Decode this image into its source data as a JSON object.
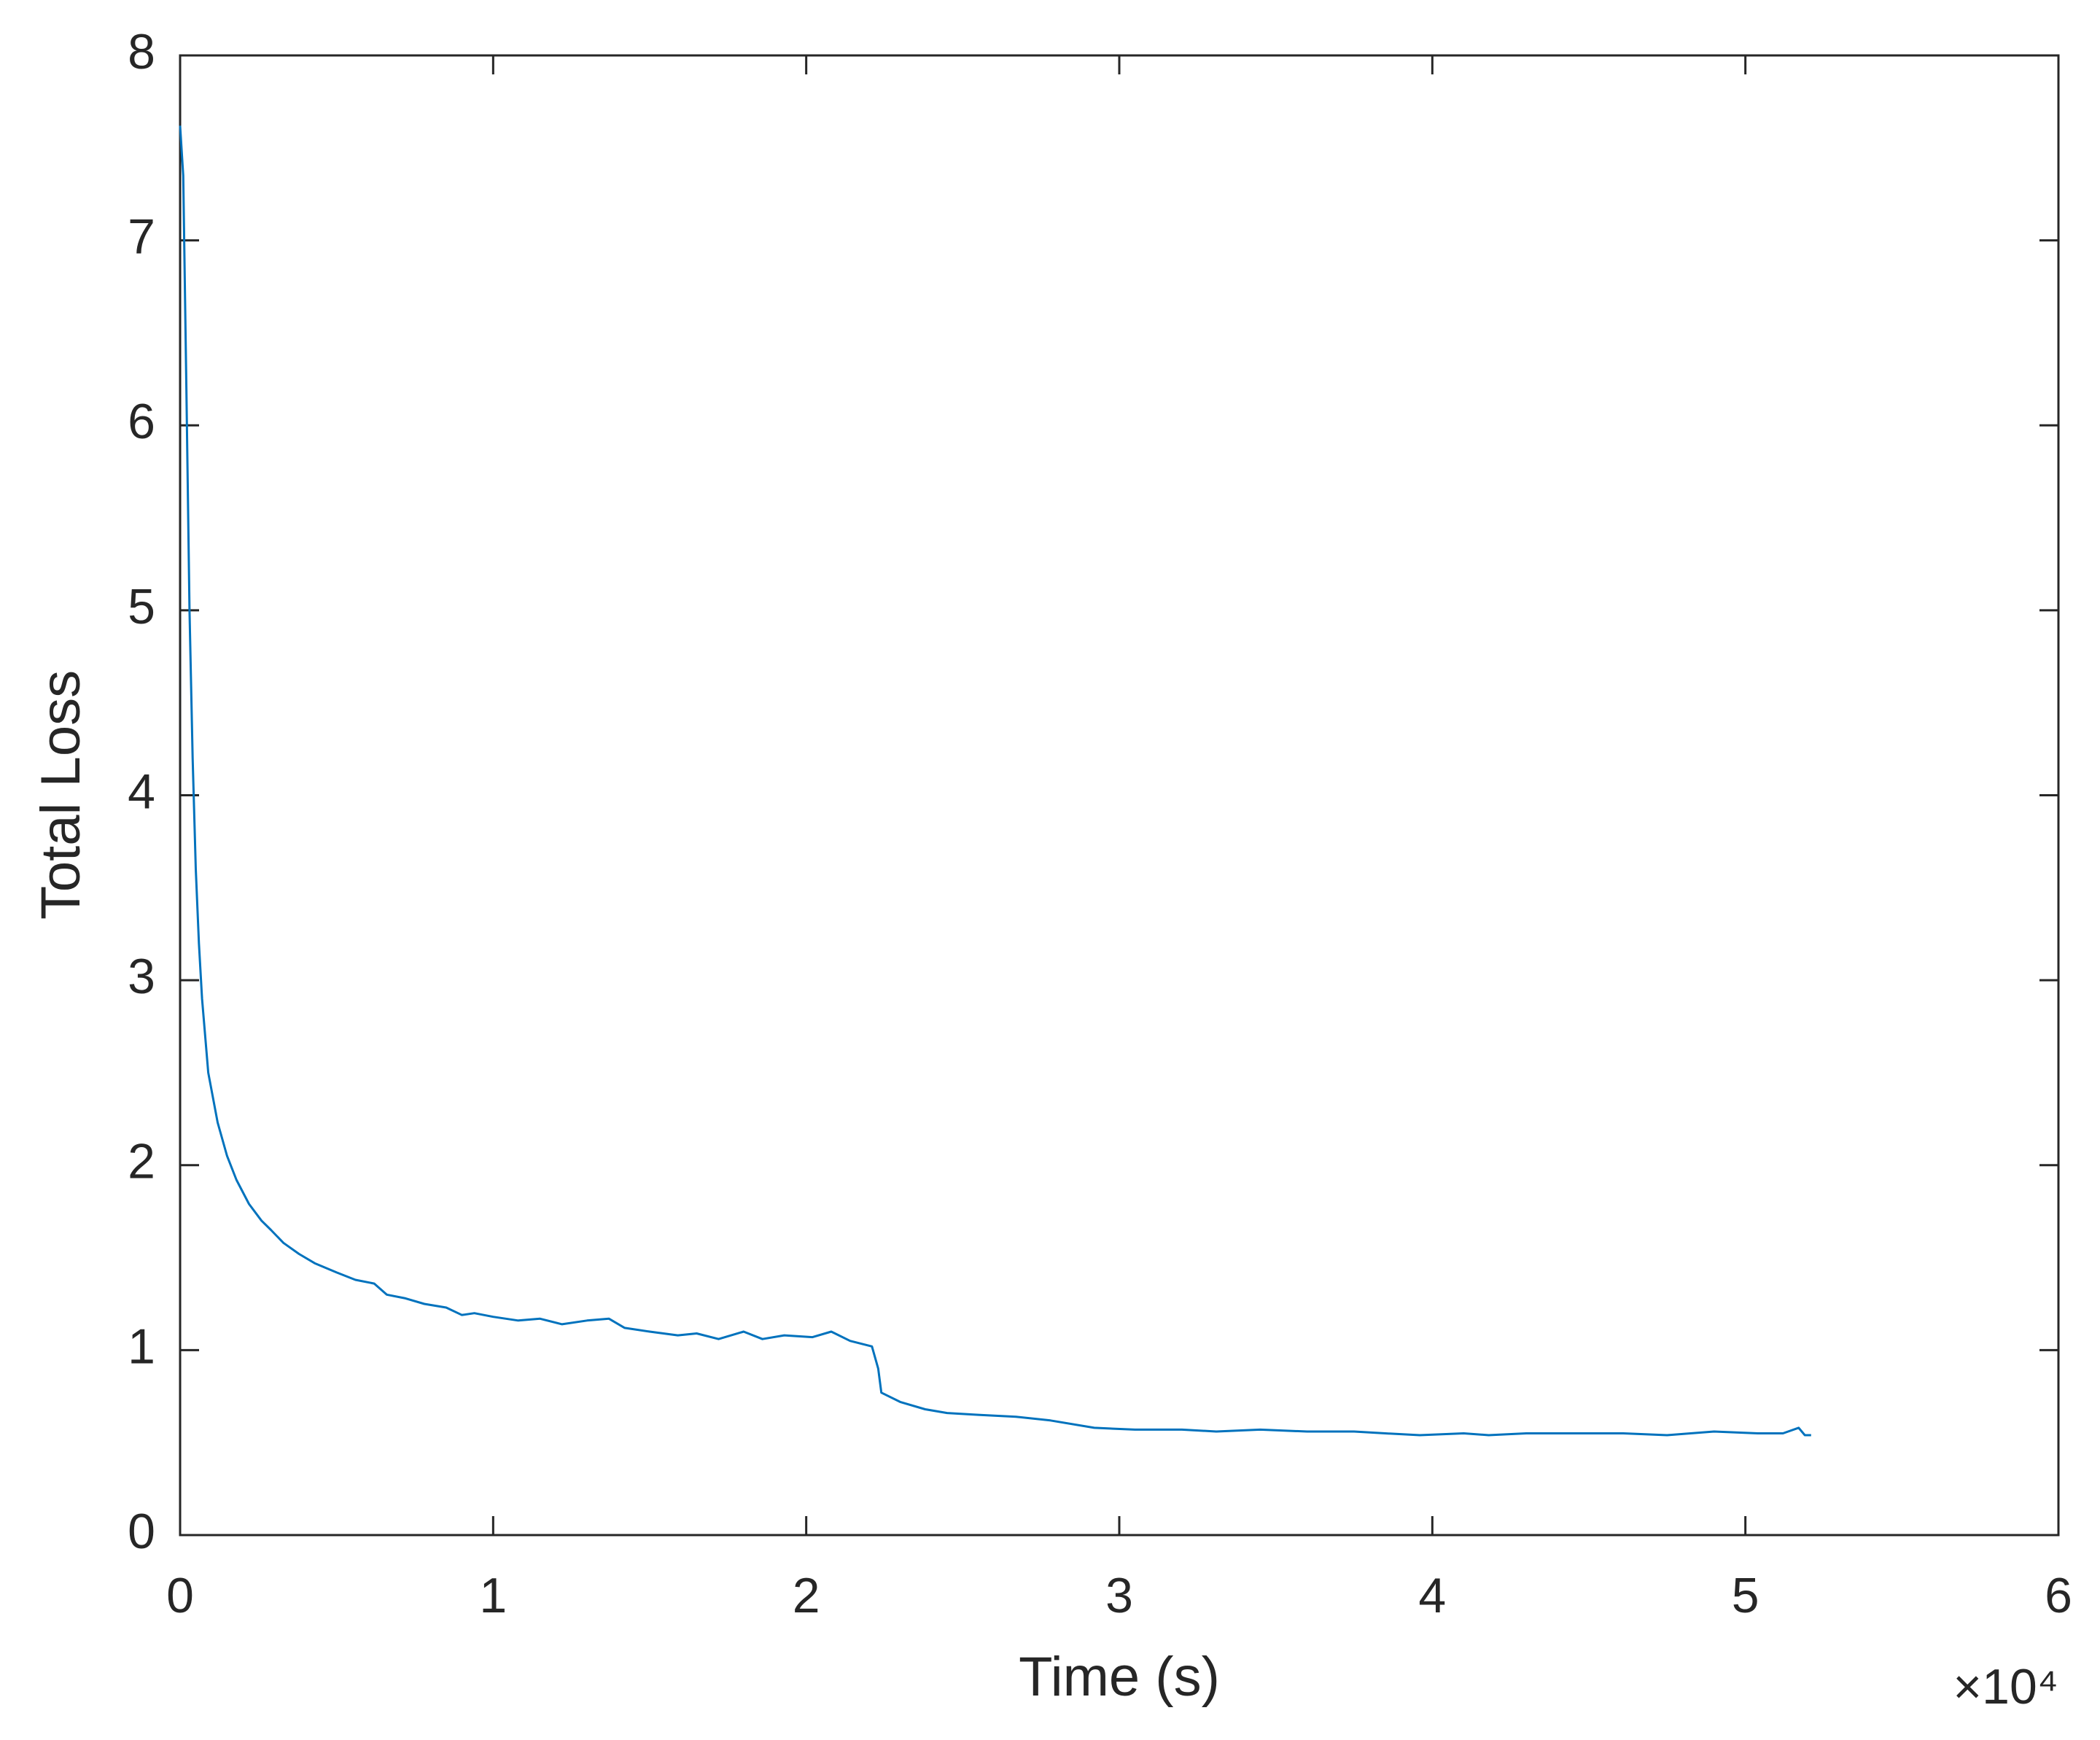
{
  "chart_data": {
    "type": "line",
    "xlabel": "Time (s)",
    "ylabel": "Total Loss",
    "x_exponent_label": "×10⁴",
    "xlim": [
      0,
      6
    ],
    "xticks": [
      0,
      1,
      2,
      3,
      4,
      5,
      6
    ],
    "ylim": [
      0,
      8
    ],
    "yticks": [
      0,
      1,
      2,
      3,
      4,
      5,
      6,
      7,
      8
    ],
    "grid": false,
    "box": true,
    "series": [
      {
        "color": "#0072BD",
        "x": [
          0,
          0.01,
          0.02,
          0.03,
          0.04,
          0.05,
          0.06,
          0.07,
          0.09,
          0.12,
          0.15,
          0.18,
          0.22,
          0.26,
          0.29,
          0.33,
          0.38,
          0.43,
          0.5,
          0.56,
          0.62,
          0.66,
          0.72,
          0.78,
          0.85,
          0.9,
          0.94,
          1.0,
          1.08,
          1.15,
          1.22,
          1.3,
          1.37,
          1.42,
          1.5,
          1.59,
          1.65,
          1.72,
          1.8,
          1.86,
          1.93,
          2.02,
          2.08,
          2.14,
          2.21,
          2.23,
          2.24,
          2.3,
          2.38,
          2.45,
          2.55,
          2.67,
          2.78,
          2.92,
          3.05,
          3.2,
          3.31,
          3.45,
          3.6,
          3.75,
          3.85,
          3.96,
          4.1,
          4.18,
          4.3,
          4.45,
          4.61,
          4.75,
          4.9,
          5.04,
          5.12,
          5.17,
          5.19,
          5.21
        ],
        "values": [
          7.62,
          7.35,
          6.2,
          5.0,
          4.2,
          3.6,
          3.2,
          2.9,
          2.5,
          2.23,
          2.05,
          1.92,
          1.79,
          1.7,
          1.65,
          1.58,
          1.52,
          1.47,
          1.42,
          1.38,
          1.36,
          1.3,
          1.28,
          1.25,
          1.23,
          1.19,
          1.2,
          1.18,
          1.16,
          1.17,
          1.14,
          1.16,
          1.17,
          1.12,
          1.1,
          1.08,
          1.09,
          1.06,
          1.1,
          1.06,
          1.08,
          1.07,
          1.1,
          1.05,
          1.02,
          0.9,
          0.77,
          0.72,
          0.68,
          0.66,
          0.65,
          0.64,
          0.62,
          0.58,
          0.57,
          0.57,
          0.56,
          0.57,
          0.56,
          0.56,
          0.55,
          0.54,
          0.55,
          0.54,
          0.55,
          0.55,
          0.55,
          0.54,
          0.56,
          0.55,
          0.55,
          0.58,
          0.54,
          0.54
        ]
      }
    ]
  }
}
